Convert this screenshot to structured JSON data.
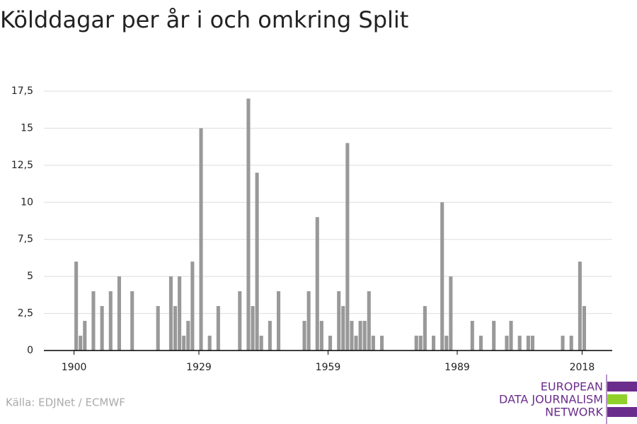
{
  "chart_data": {
    "type": "bar",
    "title": "Kölddagar per år i och omkring Split",
    "source": "Källa: EDJNet / ECMWF",
    "logo": [
      "EUROPEAN",
      "DATA JOURNALISM",
      "NETWORK"
    ],
    "color": "#999999",
    "x": [
      1900,
      1901,
      1902,
      1904,
      1906,
      1908,
      1910,
      1913,
      1919,
      1922,
      1923,
      1924,
      1925,
      1926,
      1927,
      1929,
      1931,
      1933,
      1938,
      1940,
      1941,
      1942,
      1943,
      1945,
      1947,
      1953,
      1954,
      1956,
      1957,
      1959,
      1961,
      1962,
      1963,
      1964,
      1965,
      1966,
      1967,
      1968,
      1969,
      1971,
      1979,
      1980,
      1981,
      1983,
      1985,
      1986,
      1987,
      1992,
      1994,
      1997,
      2000,
      2001,
      2003,
      2005,
      2006,
      2013,
      2015,
      2017,
      2018
    ],
    "values": [
      6,
      1,
      2,
      4,
      3,
      4,
      5,
      4,
      3,
      5,
      3,
      5,
      1,
      2,
      6,
      15,
      1,
      3,
      4,
      17,
      3,
      12,
      1,
      2,
      4,
      2,
      4,
      9,
      2,
      1,
      4,
      3,
      14,
      2,
      1,
      2,
      2,
      4,
      1,
      1,
      1,
      1,
      3,
      1,
      10,
      1,
      5,
      2,
      1,
      2,
      1,
      2,
      1,
      1,
      1,
      1,
      1,
      6,
      3
    ],
    "xlim": [
      1893,
      2025
    ],
    "xticks": [
      1900,
      1929,
      1959,
      1989,
      2018
    ],
    "ylim": [
      0,
      17.5
    ],
    "yticks": [
      0,
      {
        "value": 2.5,
        "label": "2,5"
      },
      5,
      {
        "value": 7.5,
        "label": "7,5"
      },
      10,
      {
        "value": 12.5,
        "label": "12,5"
      },
      15,
      {
        "value": 17.5,
        "label": "17,5"
      }
    ],
    "grid": true
  }
}
